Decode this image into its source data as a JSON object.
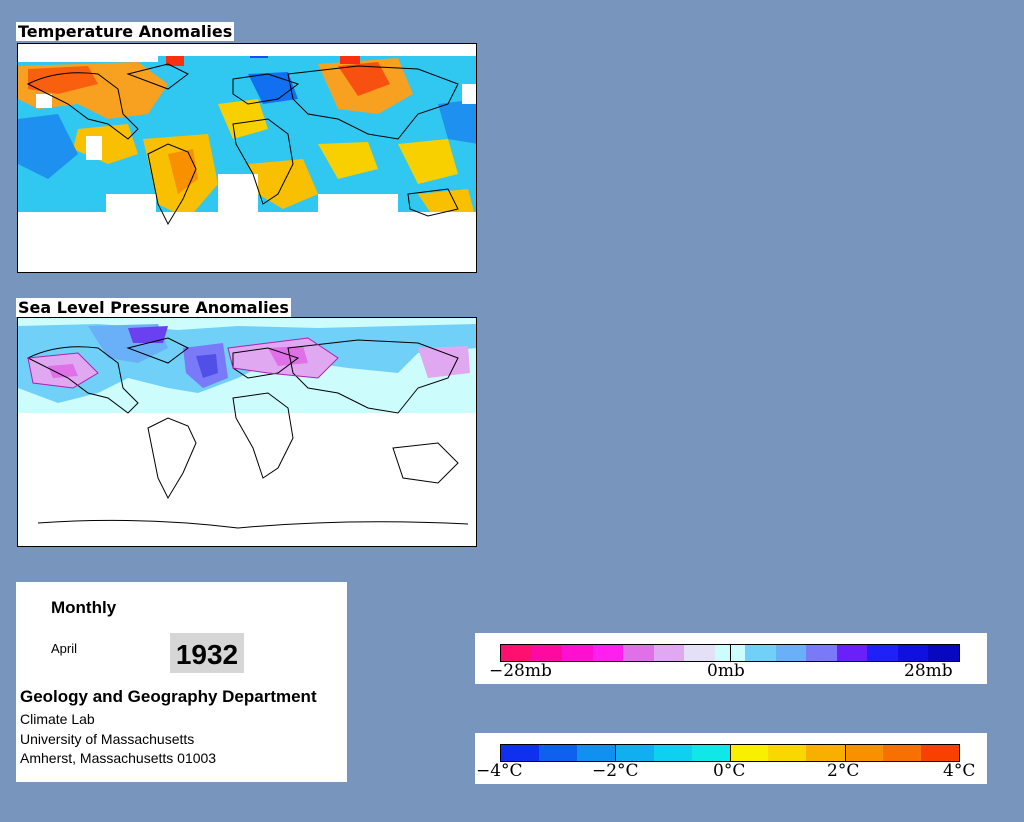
{
  "temperature_panel": {
    "title": "Temperature Anomalies"
  },
  "pressure_panel": {
    "title": "Sea Level Pressure Anomalies"
  },
  "info": {
    "period": "Monthly",
    "month": "April",
    "year": "1932",
    "department": "Geology and Geography Department",
    "lab": "Climate Lab",
    "university": "University of Massachusetts",
    "address": "Amherst, Massachusetts 01003"
  },
  "pressure_legend": {
    "labels": [
      "−28mb",
      "0mb",
      "28mb"
    ],
    "colors": [
      "#ff1070",
      "#ff0aa0",
      "#ff10d0",
      "#ff20f0",
      "#e070e8",
      "#e0a8f0",
      "#e4e0f8",
      "#ccfcfc",
      "#70d0f8",
      "#6ab0f8",
      "#7a7af8",
      "#6a20f8",
      "#2020f8",
      "#1010e0",
      "#0808c0"
    ]
  },
  "temperature_legend": {
    "labels": [
      "−4°C",
      "−2°C",
      "0°C",
      "2°C",
      "4°C"
    ],
    "colors": [
      "#1030f0",
      "#1060f0",
      "#1090f0",
      "#10b0f0",
      "#10d0f0",
      "#10e8e8",
      "#f8f000",
      "#f8d800",
      "#f8b000",
      "#f89000",
      "#f87000",
      "#f84000"
    ]
  }
}
